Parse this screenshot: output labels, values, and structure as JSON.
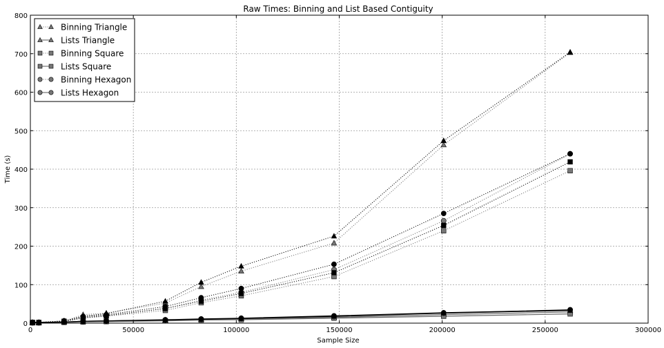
{
  "chart_data": {
    "type": "line",
    "title": "Raw Times: Binning and List Based Contiguity",
    "xlabel": "Sample Size",
    "ylabel": "Time (s)",
    "xlim": [
      0,
      300000
    ],
    "ylim": [
      0,
      800
    ],
    "xticks": [
      "0",
      "50000",
      "100000",
      "150000",
      "200000",
      "250000",
      "300000"
    ],
    "yticks": [
      "0",
      "100",
      "200",
      "300",
      "400",
      "500",
      "600",
      "700",
      "800"
    ],
    "grid": true,
    "legend_position": "top-left",
    "x": [
      1024,
      4096,
      16384,
      25600,
      36864,
      65536,
      82944,
      102400,
      147456,
      200704,
      262144
    ],
    "series": [
      {
        "name": "Binning Triangle",
        "marker": "triangle",
        "line": "dotted",
        "color": "#777777",
        "values": [
          1,
          1,
          5,
          22,
          26,
          52,
          95,
          135,
          208,
          463,
          703
        ]
      },
      {
        "name": "Lists Triangle",
        "marker": "triangle",
        "line": "solid",
        "color": "#777777",
        "values": [
          1,
          1,
          3,
          4,
          5,
          7,
          9,
          11,
          15,
          22,
          29
        ]
      },
      {
        "name": "Binning Square",
        "marker": "square",
        "line": "dotted",
        "color": "#777777",
        "values": [
          1,
          1,
          4,
          13,
          18,
          33,
          53,
          71,
          121,
          240,
          396
        ]
      },
      {
        "name": "Lists Square",
        "marker": "square",
        "line": "solid",
        "color": "#777777",
        "values": [
          1,
          1,
          2,
          3,
          4,
          6,
          8,
          9,
          13,
          18,
          24
        ]
      },
      {
        "name": "Binning Hexagon",
        "marker": "circle",
        "line": "dotted",
        "color": "#777777",
        "values": [
          1,
          1,
          4,
          15,
          20,
          38,
          60,
          80,
          139,
          266,
          440
        ]
      },
      {
        "name": "Lists Hexagon",
        "marker": "circle",
        "line": "solid",
        "color": "#777777",
        "values": [
          1,
          1,
          3,
          4,
          5,
          8,
          10,
          12,
          17,
          26,
          35
        ]
      },
      {
        "marker": "triangle",
        "line": "dotted",
        "color": "#000000",
        "values": [
          2,
          2,
          6,
          18,
          25,
          57,
          106,
          148,
          226,
          474,
          704
        ]
      },
      {
        "marker": "square",
        "line": "dotted",
        "color": "#000000",
        "values": [
          2,
          2,
          5,
          14,
          19,
          38,
          57,
          77,
          131,
          254,
          419
        ]
      },
      {
        "marker": "circle",
        "line": "dotted",
        "color": "#000000",
        "values": [
          2,
          2,
          6,
          17,
          22,
          43,
          66,
          90,
          153,
          285,
          440
        ]
      },
      {
        "marker": "triangle",
        "line": "solid",
        "color": "#000000",
        "values": [
          2,
          2,
          3,
          5,
          6,
          8,
          10,
          12,
          18,
          26,
          33
        ]
      },
      {
        "marker": "circle",
        "line": "solid",
        "color": "#000000",
        "values": [
          2,
          2,
          3,
          5,
          6,
          9,
          11,
          13,
          19,
          27,
          34
        ]
      }
    ]
  }
}
